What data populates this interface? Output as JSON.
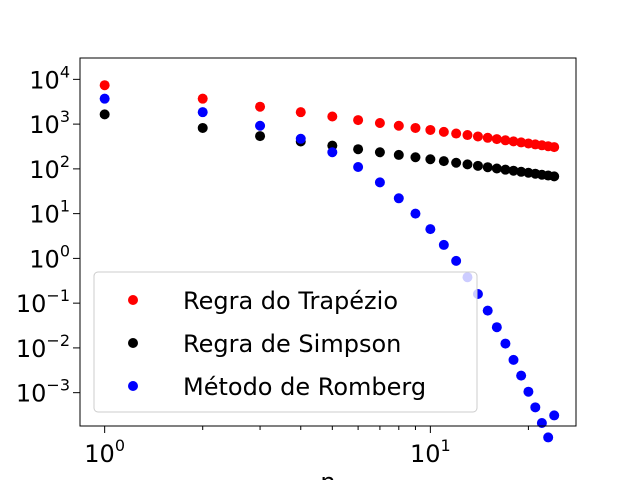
{
  "chart_data": {
    "type": "scatter",
    "title": "",
    "xlabel": "n",
    "ylabel": "",
    "xscale": "log",
    "yscale": "log",
    "xlim": [
      0.84,
      28
    ],
    "ylim": [
      0.00018,
      30000
    ],
    "grid": false,
    "legend_position": "lower-left",
    "x_ticks": [
      {
        "base": "10",
        "exp": "0",
        "value": 1
      },
      {
        "base": "10",
        "exp": "1",
        "value": 10
      }
    ],
    "y_ticks": [
      {
        "base": "10",
        "exp": "4",
        "value": 10000
      },
      {
        "base": "10",
        "exp": "3",
        "value": 1000
      },
      {
        "base": "10",
        "exp": "2",
        "value": 100
      },
      {
        "base": "10",
        "exp": "1",
        "value": 10
      },
      {
        "base": "10",
        "exp": "0",
        "value": 1
      },
      {
        "base": "10",
        "exp": "−1",
        "value": 0.1
      },
      {
        "base": "10",
        "exp": "−2",
        "value": 0.01
      },
      {
        "base": "10",
        "exp": "−3",
        "value": 0.001
      }
    ],
    "x": [
      1,
      2,
      3,
      4,
      5,
      6,
      7,
      8,
      9,
      10,
      11,
      12,
      13,
      14,
      15,
      16,
      17,
      18,
      19,
      20,
      21,
      22,
      23,
      24
    ],
    "series": [
      {
        "name": "Regra do Trapézio",
        "color": "#ff0000",
        "values": [
          7400,
          3700,
          2450,
          1850,
          1480,
          1230,
          1060,
          920,
          820,
          740,
          670,
          615,
          570,
          530,
          495,
          463,
          435,
          411,
          390,
          370,
          352,
          336,
          321,
          307
        ]
      },
      {
        "name": "Regra de Simpson",
        "color": "#000000",
        "values": [
          1650,
          820,
          540,
          410,
          330,
          275,
          235,
          205,
          182,
          164,
          149,
          137,
          126,
          117,
          109,
          102,
          96,
          91,
          86,
          82,
          78,
          74,
          71,
          68
        ]
      },
      {
        "name": "Método de Romberg",
        "color": "#0000ff",
        "values": [
          3700,
          1850,
          920,
          470,
          235,
          110,
          50,
          22,
          10,
          4.5,
          2.0,
          0.88,
          0.38,
          0.16,
          0.068,
          0.029,
          0.0125,
          0.0054,
          0.0024,
          0.00105,
          0.00047,
          0.00021,
          0.0001,
          0.00031
        ]
      }
    ]
  }
}
